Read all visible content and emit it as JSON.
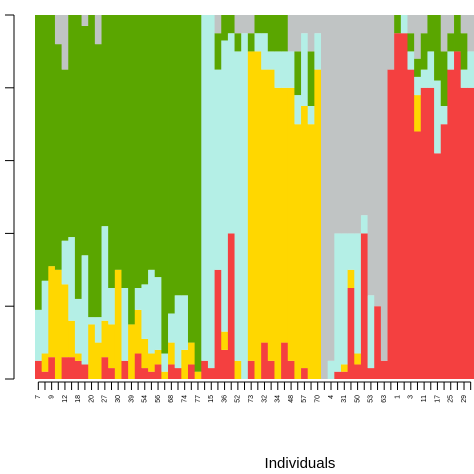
{
  "chart_data": {
    "type": "stacked-bar",
    "x_label": "Individuals",
    "categories": [
      "7",
      null,
      "9",
      null,
      "12",
      null,
      "18",
      null,
      "20",
      null,
      "27",
      null,
      "30",
      null,
      "39",
      null,
      "54",
      null,
      "56",
      null,
      "68",
      null,
      "74",
      null,
      "77",
      null,
      "15",
      null,
      "36",
      null,
      "52",
      null,
      "73",
      null,
      "32",
      null,
      "34",
      null,
      "48",
      null,
      "57",
      null,
      "70",
      null,
      "4",
      null,
      "31",
      null,
      "50",
      null,
      "53",
      null,
      "63",
      null,
      "1",
      null,
      "3",
      null,
      "11",
      null,
      "17",
      null,
      "25",
      null,
      "29",
      null
    ],
    "ylim": [
      0,
      1
    ],
    "yticks": [
      0,
      0.2,
      0.4,
      0.6,
      0.8,
      1
    ],
    "series": [
      {
        "color": "#f44040",
        "values": [
          0.05,
          0.02,
          0.06,
          0,
          0.06,
          0.06,
          0.05,
          0.04,
          0,
          0,
          0.06,
          0.03,
          0,
          0.05,
          0,
          0.07,
          0.03,
          0.02,
          0.04,
          0,
          0.04,
          0.03,
          0,
          0.04,
          0,
          0.05,
          0.03,
          0.3,
          0.08,
          0.4,
          0,
          0,
          0.05,
          0,
          0.1,
          0.05,
          0,
          0.1,
          0.05,
          0,
          0.03,
          0,
          0,
          0,
          0,
          0.02,
          0.02,
          0.25,
          0.04,
          0.4,
          0.03,
          0.2,
          0.05,
          0.85,
          0.95,
          0.95,
          0.85,
          0.68,
          0.8,
          0.8,
          0.62,
          0.7,
          0.85,
          0.9,
          0.8,
          0.8
        ]
      },
      {
        "color": "#ffd700",
        "values": [
          0,
          0.05,
          0.25,
          0.3,
          0.2,
          0.1,
          0.02,
          0,
          0.15,
          0.1,
          0.1,
          0.12,
          0.3,
          0,
          0.15,
          0.12,
          0.08,
          0.05,
          0.04,
          0.02,
          0.06,
          0,
          0.08,
          0.06,
          0.02,
          0,
          0,
          0,
          0.05,
          0,
          0.05,
          0,
          0.85,
          0.9,
          0.75,
          0.8,
          0.8,
          0.7,
          0.75,
          0.7,
          0.72,
          0.7,
          0.85,
          0,
          0,
          0,
          0.02,
          0.05,
          0.03,
          0,
          0,
          0,
          0,
          0,
          0,
          0,
          0,
          0.1,
          0,
          0,
          0,
          0,
          0,
          0,
          0,
          0
        ]
      },
      {
        "color": "#b4efe6",
        "values": [
          0.14,
          0.2,
          0,
          0,
          0.12,
          0.23,
          0.15,
          0.3,
          0.02,
          0.07,
          0.26,
          0.1,
          0,
          0.2,
          0,
          0.06,
          0.15,
          0.23,
          0.2,
          0.05,
          0.08,
          0.2,
          0.15,
          0,
          0,
          0.95,
          0.97,
          0.55,
          0.8,
          0.55,
          0.85,
          0.95,
          0,
          0.05,
          0.1,
          0.05,
          0.1,
          0.1,
          0.1,
          0.08,
          0.2,
          0.05,
          0.1,
          0,
          0.05,
          0.38,
          0.36,
          0.1,
          0.33,
          0.05,
          0.2,
          0,
          0,
          0,
          0,
          0.05,
          0.05,
          0.05,
          0.05,
          0.1,
          0.2,
          0.05,
          0.05,
          0,
          0.05,
          0.1
        ]
      },
      {
        "color": "#5aa600",
        "values": [
          0.81,
          0.73,
          0.69,
          0.62,
          0.47,
          0.61,
          0.78,
          0.63,
          0.83,
          0.75,
          0.58,
          0.75,
          0.7,
          0.75,
          0.85,
          0.75,
          0.74,
          0.7,
          0.72,
          0.93,
          0.82,
          0.77,
          0.77,
          0.9,
          0.98,
          0,
          0,
          0.1,
          0.07,
          0.05,
          0.05,
          0,
          0.05,
          0.05,
          0.05,
          0.1,
          0.1,
          0.1,
          0,
          0.12,
          0,
          0.15,
          0,
          0,
          0,
          0,
          0,
          0,
          0,
          0,
          0,
          0,
          0,
          0,
          0.05,
          0,
          0.05,
          0.05,
          0.1,
          0.1,
          0.18,
          0.15,
          0.05,
          0.1,
          0.1,
          0
        ]
      },
      {
        "color": "#c0c4c4",
        "values": [
          0,
          0,
          0,
          0.08,
          0.15,
          0,
          0,
          0.03,
          0,
          0.08,
          0,
          0,
          0,
          0,
          0,
          0,
          0,
          0,
          0,
          0,
          0,
          0,
          0,
          0,
          0,
          0,
          0,
          0.05,
          0,
          0,
          0.05,
          0.05,
          0.05,
          0,
          0,
          0,
          0,
          0,
          0.1,
          0.1,
          0.05,
          0.1,
          0.05,
          1,
          0.95,
          0.6,
          0.6,
          0.6,
          0.6,
          0.55,
          0.77,
          0.8,
          0.95,
          0.15,
          0,
          0,
          0.05,
          0.12,
          0.05,
          0,
          0,
          0.1,
          0.05,
          0,
          0.05,
          0.1
        ]
      }
    ]
  }
}
